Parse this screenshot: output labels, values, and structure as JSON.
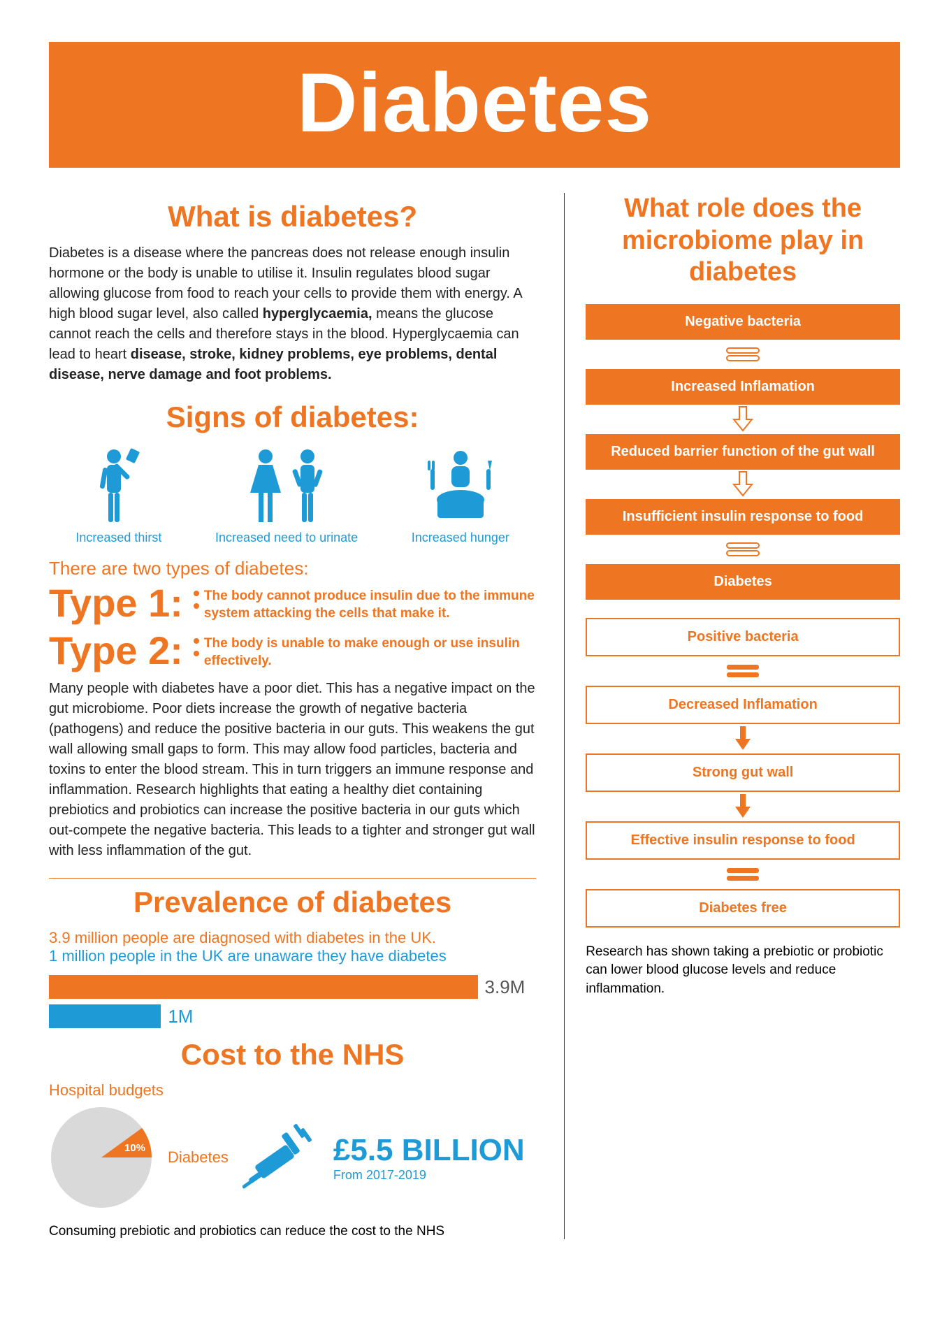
{
  "colors": {
    "orange": "#ee7623",
    "blue": "#1e9bd7",
    "text": "#222222",
    "grey": "#d9d9d9",
    "barLabel": "#555555"
  },
  "banner": {
    "title": "Diabetes"
  },
  "whatIs": {
    "title": "What is diabetes?",
    "para_part1": "Diabetes is a disease where the pancreas does not release enough insulin hormone or the body is unable to utilise it. Insulin regulates blood sugar allowing glucose from food to reach your cells to provide them with energy. A high blood sugar level, also called ",
    "bold1": "hyperglycaemia,",
    "para_part2": " means the glucose cannot reach the cells and therefore stays in the blood. Hyperglycaemia can lead to heart ",
    "bold2": "disease, stroke, kidney problems, eye problems, dental disease, nerve damage and foot problems."
  },
  "signs": {
    "title": "Signs of diabetes:",
    "items": [
      {
        "label": "Increased thirst"
      },
      {
        "label": "Increased need to urinate"
      },
      {
        "label": "Increased hunger"
      }
    ]
  },
  "types": {
    "heading": "There are two types of diabetes:",
    "t1": {
      "label": "Type 1:",
      "desc": "The body cannot produce insulin due to the immune system attacking the cells that make it."
    },
    "t2": {
      "label": "Type 2:",
      "desc": "The body is unable to make enough or use insulin effectively."
    }
  },
  "microPara": "Many people with diabetes have a poor diet. This has a negative impact on the gut microbiome. Poor diets increase the growth of negative bacteria (pathogens) and reduce the positive bacteria in our guts. This weakens the gut wall allowing small gaps to form. This may allow food particles, bacteria and toxins to enter the blood stream. This in turn triggers an immune response and inflammation. Research highlights that eating a healthy diet containing prebiotics and probiotics can increase the positive bacteria in our guts which out-compete the negative bacteria. This leads to a tighter and stronger gut wall with less inflammation of the gut.",
  "prevalence": {
    "title": "Prevalence of diabetes",
    "line1": "3.9 million people are diagnosed with diabetes in the UK.",
    "line2": "1 million people in the UK are unaware they have diabetes",
    "bars": [
      {
        "value": "3.9M",
        "width_pct": 88,
        "color": "#ee7623"
      },
      {
        "value": "1M",
        "width_pct": 23,
        "color": "#1e9bd7"
      }
    ]
  },
  "nhs": {
    "title": "Cost to the NHS",
    "hospital": "Hospital budgets",
    "slice_label": "10%",
    "diabetes": "Diabetes",
    "cost": "£5.5 BILLION",
    "period": "From 2017-2019",
    "footer": "Consuming prebiotic and probiotics can reduce the cost to the NHS",
    "pie": {
      "slice_pct": 10,
      "slice_color": "#ee7623",
      "rest_color": "#d9d9d9"
    }
  },
  "right": {
    "title": "What role does the microbiome play in diabetes",
    "flow": [
      {
        "style": "fill",
        "label": "Negative bacteria"
      },
      {
        "style": "conn",
        "kind": "equals-outline"
      },
      {
        "style": "fill",
        "label": "Increased Inflamation"
      },
      {
        "style": "conn",
        "kind": "arrow-outline"
      },
      {
        "style": "fill",
        "label": "Reduced barrier function of the gut wall"
      },
      {
        "style": "conn",
        "kind": "arrow-outline"
      },
      {
        "style": "fill",
        "label": "Insufficient insulin response to food"
      },
      {
        "style": "conn",
        "kind": "equals-outline"
      },
      {
        "style": "fill",
        "label": "Diabetes"
      },
      {
        "style": "gap"
      },
      {
        "style": "outline",
        "label": "Positive bacteria"
      },
      {
        "style": "conn",
        "kind": "equals-solid"
      },
      {
        "style": "outline",
        "label": "Decreased Inflamation"
      },
      {
        "style": "conn",
        "kind": "arrow-solid"
      },
      {
        "style": "outline",
        "label": "Strong gut wall"
      },
      {
        "style": "conn",
        "kind": "arrow-solid"
      },
      {
        "style": "outline",
        "label": "Effective insulin response to food"
      },
      {
        "style": "conn",
        "kind": "equals-solid"
      },
      {
        "style": "outline",
        "label": "Diabetes free"
      }
    ],
    "footer": "Research has shown taking a prebiotic or probiotic can lower blood glucose levels and reduce inflammation."
  }
}
